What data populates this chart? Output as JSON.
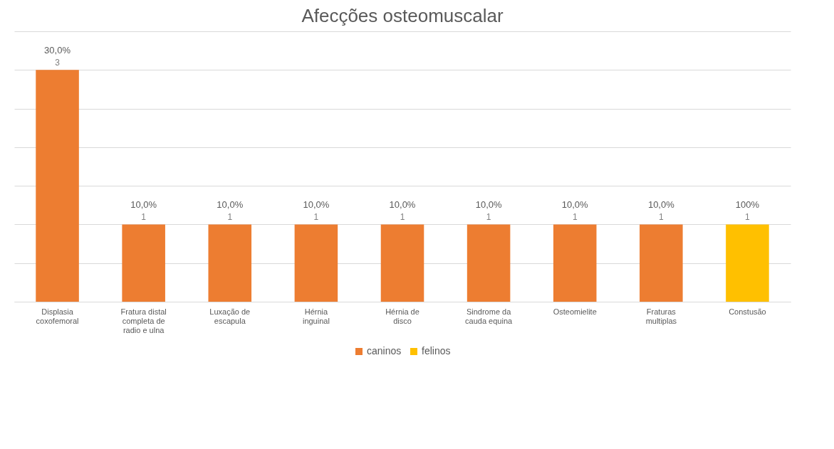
{
  "chart_data": {
    "type": "bar",
    "title": "Afecções osteomuscalar",
    "categories": [
      "Displasia coxofemoral",
      "Fratura distal completa de radio e ulna",
      "Luxação de escapula",
      "Hérnia inguinal",
      "Hérnia de disco",
      "Sindrome da cauda equina",
      "Osteomielite",
      "Fraturas multiplas",
      "Constusão"
    ],
    "series": [
      {
        "name": "caninos",
        "color": "#ed7d31",
        "values": [
          3,
          1,
          1,
          1,
          1,
          1,
          1,
          1,
          null
        ]
      },
      {
        "name": "felinos",
        "color": "#ffc000",
        "values": [
          null,
          null,
          null,
          null,
          null,
          null,
          null,
          null,
          1
        ]
      }
    ],
    "ylim": [
      0,
      3.5
    ],
    "yticks": [
      {
        "value": 0,
        "label": null
      },
      {
        "value": 0.5,
        "label": null
      },
      {
        "value": 1,
        "label": null
      },
      {
        "value": 1.5,
        "label": null
      },
      {
        "value": 2,
        "label": null
      },
      {
        "value": 2.5,
        "label": null
      },
      {
        "value": 3,
        "label": null
      },
      {
        "value": 3.5,
        "label": null
      }
    ],
    "tick_labels": "x",
    "grid": "y",
    "legend": "bottom",
    "data_labels": true,
    "annotations": [
      {
        "text": "30,0%",
        "x": "Displasia coxofemoral",
        "y": 3
      },
      {
        "text": "10,0%",
        "x": "Fratura distal completa de radio e ulna",
        "y": 1
      },
      {
        "text": "10,0%",
        "x": "Luxação de escapula",
        "y": 1
      },
      {
        "text": "10,0%",
        "x": "Hérnia inguinal",
        "y": 1
      },
      {
        "text": "10,0%",
        "x": "Hérnia de disco",
        "y": 1
      },
      {
        "text": "10,0%",
        "x": "Sindrome da cauda equina",
        "y": 1
      },
      {
        "text": "10,0%",
        "x": "Osteomielite",
        "y": 1
      },
      {
        "text": "10,0%",
        "x": "Fraturas multiplas",
        "y": 1
      },
      {
        "text": "100%",
        "x": "Constusão",
        "y": 1
      }
    ]
  }
}
